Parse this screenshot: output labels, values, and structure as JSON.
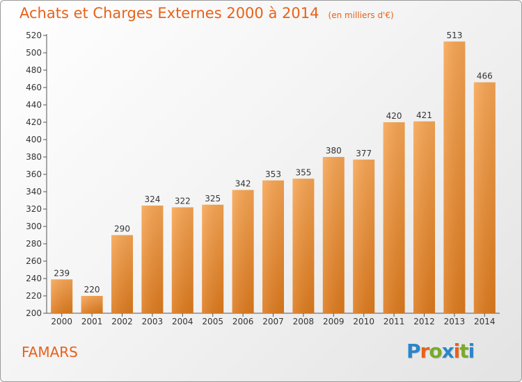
{
  "header": {
    "title": "Achats et Charges Externes 2000 à 2014",
    "subtitle": "(en milliers d'€)"
  },
  "footer": {
    "commune": "FAMARS",
    "logo_text": "Proxiti",
    "logo_colors": [
      "#2a86c9",
      "#e8611a",
      "#7aaa2a",
      "#2a86c9",
      "#e8611a",
      "#7aaa2a",
      "#2a86c9"
    ]
  },
  "chart_data": {
    "type": "bar",
    "categories": [
      "2000",
      "2001",
      "2002",
      "2003",
      "2004",
      "2005",
      "2006",
      "2007",
      "2008",
      "2009",
      "2010",
      "2011",
      "2012",
      "2013",
      "2014"
    ],
    "values": [
      239,
      220,
      290,
      324,
      322,
      325,
      342,
      353,
      355,
      380,
      377,
      420,
      421,
      513,
      466
    ],
    "title": "Achats et Charges Externes 2000 à 2014",
    "subtitle": "(en milliers d'€)",
    "xlabel": "",
    "ylabel": "",
    "ylim": [
      200,
      520
    ],
    "ytick_step": 20,
    "grid": false,
    "bar_color_top": "#f7a553",
    "bar_color_bottom": "#dd7a1d"
  }
}
